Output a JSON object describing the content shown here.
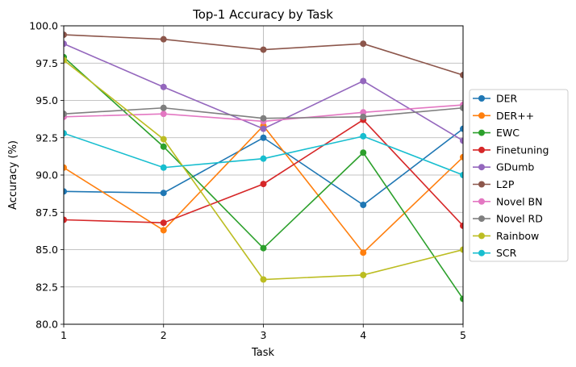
{
  "chart_data": {
    "type": "line",
    "title": "Top-1 Accuracy by Task",
    "xlabel": "Task",
    "ylabel": "Accuracy (%)",
    "x": [
      1,
      2,
      3,
      4,
      5
    ],
    "x_tick_labels": [
      "1",
      "2",
      "3",
      "4",
      "5"
    ],
    "xlim": [
      1,
      5
    ],
    "ylim": [
      80.0,
      100.0
    ],
    "y_ticks": [
      80.0,
      82.5,
      85.0,
      87.5,
      90.0,
      92.5,
      95.0,
      97.5,
      100.0
    ],
    "y_tick_labels": [
      "80.0",
      "82.5",
      "85.0",
      "87.5",
      "90.0",
      "92.5",
      "95.0",
      "97.5",
      "100.0"
    ],
    "grid": true,
    "legend_position": "outside-right",
    "series": [
      {
        "name": "DER",
        "color": "#1f77b4",
        "values": [
          88.9,
          88.8,
          92.5,
          88.0,
          93.1
        ]
      },
      {
        "name": "DER++",
        "color": "#ff7f0e",
        "values": [
          90.5,
          86.3,
          93.3,
          84.8,
          91.2
        ]
      },
      {
        "name": "EWC",
        "color": "#2ca02c",
        "values": [
          97.9,
          91.9,
          85.1,
          91.5,
          81.7
        ]
      },
      {
        "name": "Finetuning",
        "color": "#d62728",
        "values": [
          87.0,
          86.8,
          89.4,
          93.7,
          86.6
        ]
      },
      {
        "name": "GDumb",
        "color": "#9467bd",
        "values": [
          98.8,
          95.9,
          93.1,
          96.3,
          92.3
        ]
      },
      {
        "name": "L2P",
        "color": "#8c564b",
        "values": [
          99.4,
          99.1,
          98.4,
          98.8,
          96.7
        ]
      },
      {
        "name": "Novel BN",
        "color": "#e377c2",
        "values": [
          93.9,
          94.1,
          93.6,
          94.2,
          94.7
        ]
      },
      {
        "name": "Novel RD",
        "color": "#7f7f7f",
        "values": [
          94.1,
          94.5,
          93.8,
          93.9,
          94.5
        ]
      },
      {
        "name": "Rainbow",
        "color": "#bcbd22",
        "values": [
          97.7,
          92.4,
          83.0,
          83.3,
          85.0
        ]
      },
      {
        "name": "SCR",
        "color": "#17becf",
        "values": [
          92.8,
          90.5,
          91.1,
          92.6,
          90.0
        ]
      }
    ]
  }
}
